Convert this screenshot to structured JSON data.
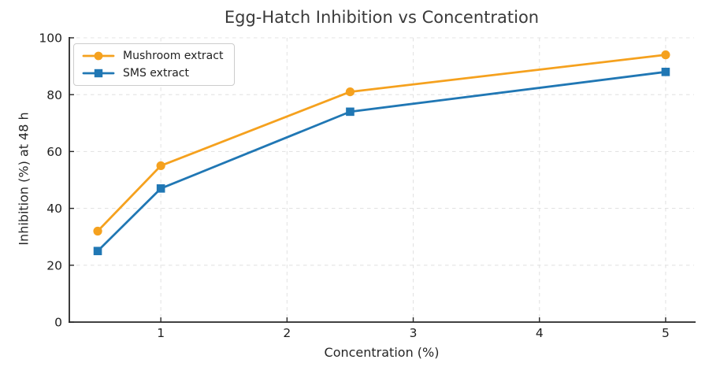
{
  "chart_data": {
    "type": "line",
    "title": "Egg-Hatch Inhibition vs Concentration",
    "xlabel": "Concentration (%)",
    "ylabel": "Inhibition (%) at 48 h",
    "x": [
      0.5,
      1.0,
      2.5,
      5.0
    ],
    "series": [
      {
        "name": "Mushroom extract",
        "values": [
          32,
          55,
          81,
          94
        ],
        "color": "#F5A11E",
        "marker": "circle"
      },
      {
        "name": "SMS extract",
        "values": [
          25,
          47,
          74,
          88
        ],
        "color": "#2077B4",
        "marker": "square"
      }
    ],
    "xlim": [
      0.275,
      5.225
    ],
    "ylim": [
      0,
      100
    ],
    "xticks": [
      1,
      2,
      3,
      4,
      5
    ],
    "yticks": [
      0,
      20,
      40,
      60,
      80,
      100
    ],
    "grid": true,
    "grid_style": "dashed",
    "legend_position": "upper left",
    "tick_direction": "in"
  },
  "style": {
    "background": "#ffffff",
    "grid_color": "#e3e3e3",
    "axis_color": "#262626",
    "tick_label_color": "#1f1f1f",
    "title_color": "#3a3a3a",
    "legend_border_color": "#cccccc"
  }
}
